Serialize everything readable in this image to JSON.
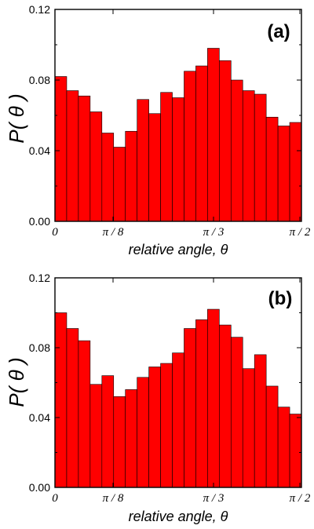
{
  "chart_data": [
    {
      "type": "bar",
      "panel_label": "(a)",
      "ylabel": "P( θ )",
      "xlabel": "relative angle, θ",
      "ylim": [
        0,
        0.12
      ],
      "y_ticks": [
        "0.00",
        "0.04",
        "0.08",
        "0.12"
      ],
      "x_ticks": [
        "0",
        "π / 8",
        "π / 3",
        "π / 2"
      ],
      "bar_color": "#ff0000",
      "values": [
        0.082,
        0.074,
        0.071,
        0.062,
        0.05,
        0.042,
        0.051,
        0.069,
        0.061,
        0.073,
        0.07,
        0.085,
        0.088,
        0.098,
        0.091,
        0.08,
        0.074,
        0.072,
        0.059,
        0.054,
        0.056
      ]
    },
    {
      "type": "bar",
      "panel_label": "(b)",
      "ylabel": "P( θ )",
      "xlabel": "relative angle, θ",
      "ylim": [
        0,
        0.12
      ],
      "y_ticks": [
        "0.00",
        "0.04",
        "0.08",
        "0.12"
      ],
      "x_ticks": [
        "0",
        "π / 8",
        "π / 3",
        "π / 2"
      ],
      "bar_color": "#ff0000",
      "values": [
        0.1,
        0.091,
        0.084,
        0.059,
        0.064,
        0.052,
        0.056,
        0.063,
        0.069,
        0.071,
        0.077,
        0.091,
        0.096,
        0.102,
        0.093,
        0.086,
        0.068,
        0.076,
        0.058,
        0.046,
        0.042
      ]
    }
  ]
}
